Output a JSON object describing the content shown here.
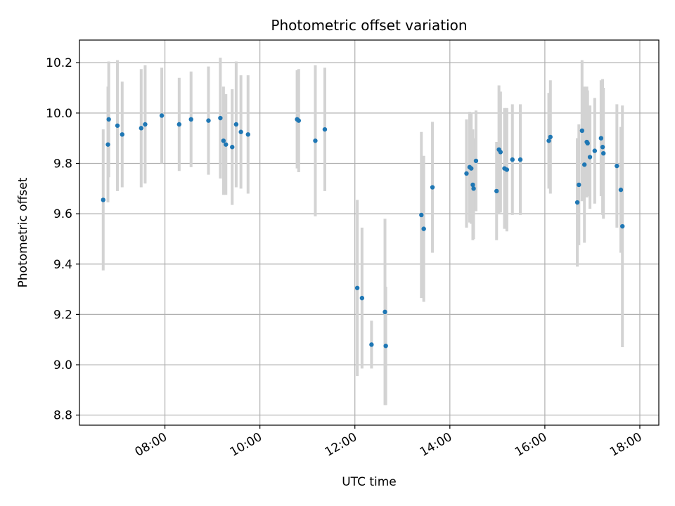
{
  "chart_data": {
    "type": "scatter",
    "title": "Photometric offset variation",
    "xlabel": "UTC time",
    "ylabel": "Photometric offset",
    "x_ticks": [
      "08:00",
      "10:00",
      "12:00",
      "14:00",
      "16:00",
      "18:00"
    ],
    "y_ticks": [
      "8.8",
      "9.0",
      "9.2",
      "9.4",
      "9.6",
      "9.8",
      "10.0",
      "10.2"
    ],
    "xlim": [
      "06:12",
      "18:24"
    ],
    "ylim": [
      8.76,
      10.29
    ],
    "grid": true,
    "colors": {
      "point": "#1f77b4",
      "errorbar": "#d3d3d3",
      "grid": "#b0b0b0"
    },
    "series": [
      {
        "x": [
          "06:42",
          "06:48",
          "06:49",
          "07:00",
          "07:06",
          "07:30",
          "07:35",
          "07:56",
          "08:18",
          "08:33",
          "08:55",
          "09:10",
          "09:14",
          "09:17",
          "09:25",
          "09:30",
          "09:36",
          "09:45",
          "10:47",
          "10:49",
          "11:10",
          "11:22",
          "12:03",
          "12:09",
          "12:21",
          "12:38",
          "12:39",
          "13:24",
          "13:27",
          "13:38",
          "14:21",
          "14:25",
          "14:27",
          "14:29",
          "14:30",
          "14:33",
          "14:59",
          "15:02",
          "15:04",
          "15:09",
          "15:12",
          "15:19",
          "15:29",
          "16:05",
          "16:07",
          "16:41",
          "16:43",
          "16:47",
          "16:50",
          "16:53",
          "16:54",
          "16:57",
          "17:03",
          "17:11",
          "17:13",
          "17:14",
          "17:31",
          "17:36",
          "17:38"
        ],
        "y": [
          9.655,
          9.875,
          9.975,
          9.95,
          9.915,
          9.94,
          9.955,
          9.99,
          9.955,
          9.975,
          9.97,
          9.98,
          9.89,
          9.875,
          9.865,
          9.955,
          9.925,
          9.915,
          9.975,
          9.97,
          9.89,
          9.935,
          9.305,
          9.265,
          9.08,
          9.21,
          9.075,
          9.595,
          9.54,
          9.705,
          9.76,
          9.785,
          9.78,
          9.715,
          9.7,
          9.81,
          9.69,
          9.855,
          9.845,
          9.78,
          9.775,
          9.815,
          9.815,
          9.89,
          9.905,
          9.645,
          9.715,
          9.93,
          9.795,
          9.885,
          9.88,
          9.825,
          9.85,
          9.9,
          9.865,
          9.84,
          9.79,
          9.695,
          9.55
        ],
        "yerr": [
          0.28,
          0.23,
          0.23,
          0.26,
          0.21,
          0.235,
          0.235,
          0.19,
          0.185,
          0.19,
          0.215,
          0.24,
          0.215,
          0.2,
          0.23,
          0.25,
          0.225,
          0.235,
          0.195,
          0.205,
          0.3,
          0.245,
          0.35,
          0.28,
          0.095,
          0.37,
          0.235,
          0.33,
          0.29,
          0.26,
          0.215,
          0.22,
          0.22,
          0.22,
          0.2,
          0.2,
          0.195,
          0.255,
          0.24,
          0.24,
          0.245,
          0.22,
          0.22,
          0.19,
          0.225,
          0.255,
          0.24,
          0.28,
          0.31,
          0.22,
          0.21,
          0.205,
          0.21,
          0.23,
          0.27,
          0.26,
          0.245,
          0.25,
          0.48
        ]
      }
    ]
  }
}
